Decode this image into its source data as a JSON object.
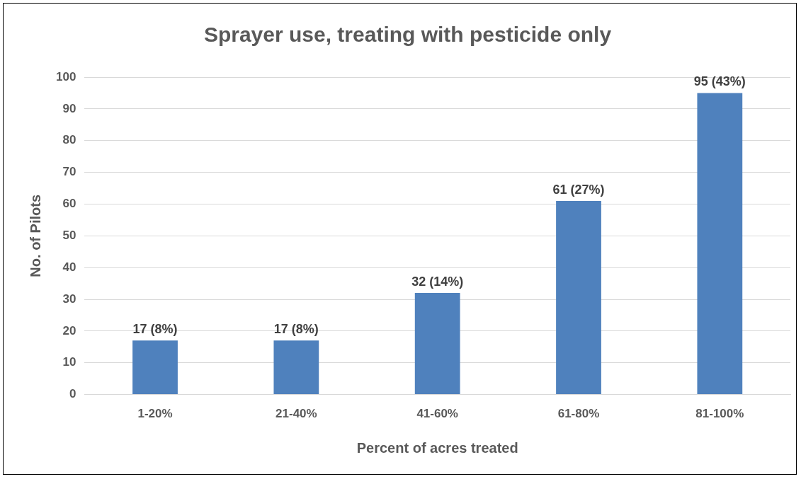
{
  "chart_data": {
    "type": "bar",
    "title": "Sprayer use, treating with pesticide only",
    "xlabel": "Percent of acres treated",
    "ylabel": "No. of Pilots",
    "categories": [
      "1-20%",
      "21-40%",
      "41-60%",
      "61-80%",
      "81-100%"
    ],
    "values": [
      17,
      17,
      32,
      61,
      95
    ],
    "value_labels": [
      "17 (8%)",
      "17 (8%)",
      "32 (14%)",
      "61 (27%)",
      "95 (43%)"
    ],
    "color": "#4f81bd",
    "ylim": [
      0,
      100
    ],
    "yticks": [
      0,
      10,
      20,
      30,
      40,
      50,
      60,
      70,
      80,
      90,
      100
    ],
    "grid": "y"
  }
}
